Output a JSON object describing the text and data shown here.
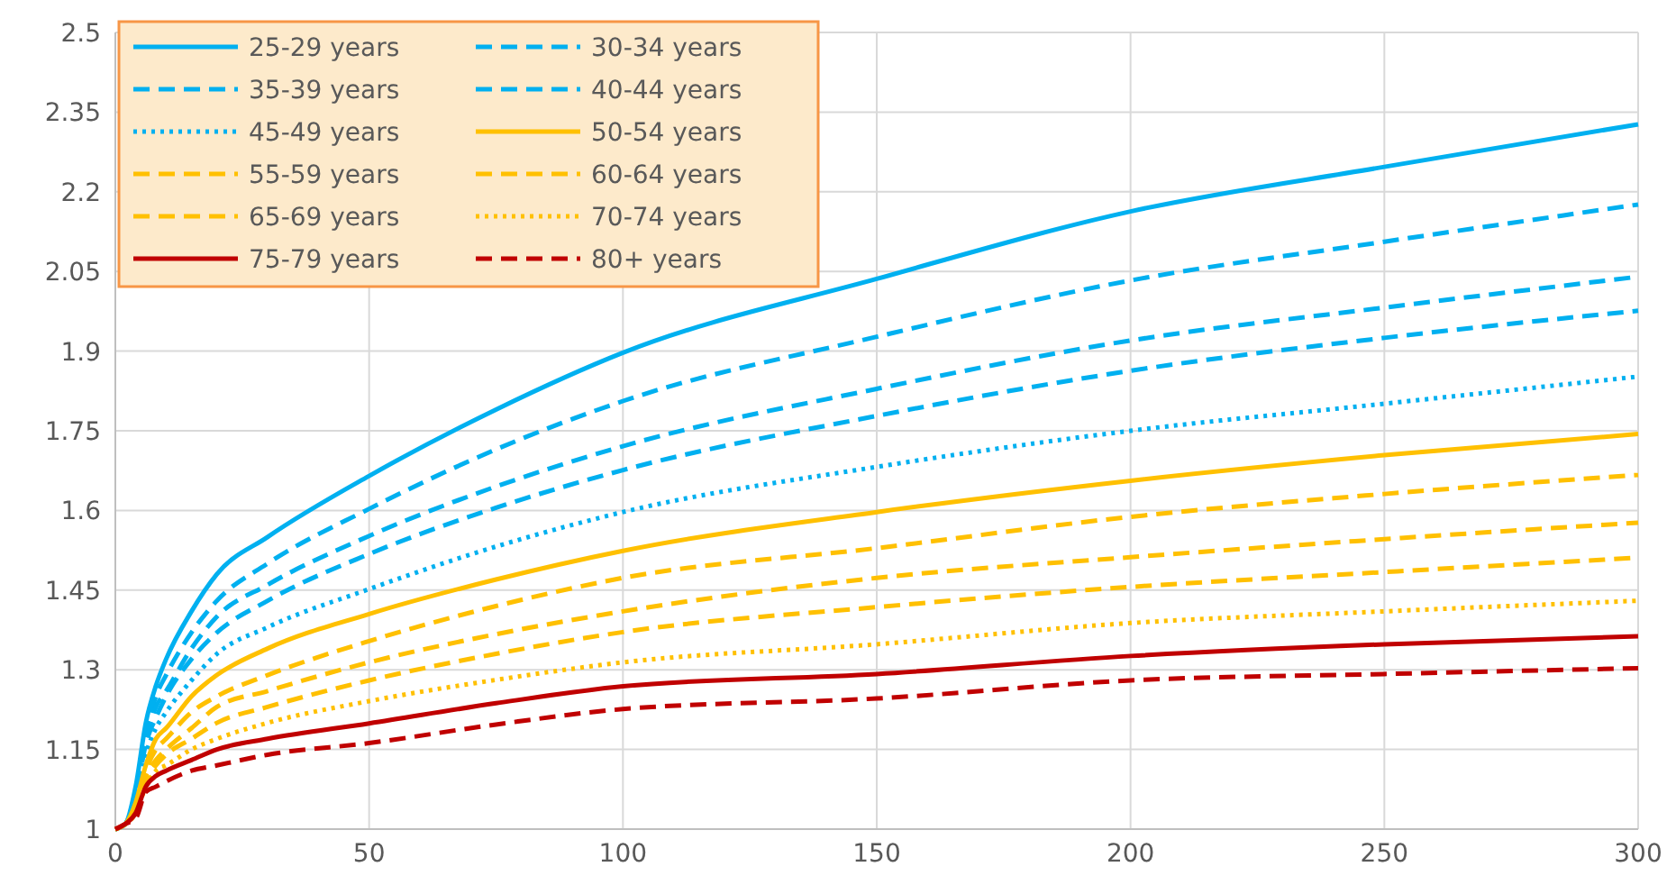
{
  "chart_data": {
    "type": "line",
    "x": [
      0,
      2,
      4,
      6,
      8,
      10,
      15,
      20,
      30,
      50,
      75,
      100,
      150,
      200,
      250,
      300
    ],
    "xlim": [
      0,
      300
    ],
    "xticks": [
      0,
      50,
      100,
      150,
      200,
      250,
      300
    ],
    "ylim": [
      1,
      2.5
    ],
    "yticks": [
      1,
      1.15,
      1.3,
      1.45,
      1.6,
      1.75,
      1.9,
      2.05,
      2.2,
      2.35,
      2.5
    ],
    "grid": true,
    "legend": "top left",
    "series": [
      {
        "name": "25-29 years",
        "color": "#00b0f0",
        "line_style": "solid",
        "values": [
          1,
          1.01,
          1.08,
          1.2,
          1.27,
          1.32,
          1.41,
          1.48,
          1.55,
          1.665,
          1.79,
          1.897,
          2.036,
          2.163,
          2.247,
          2.327
        ]
      },
      {
        "name": "30-34 years",
        "color": "#00b0f0",
        "line_style": "dashed",
        "values": [
          1,
          1.01,
          1.07,
          1.18,
          1.25,
          1.29,
          1.37,
          1.43,
          1.5,
          1.603,
          1.715,
          1.806,
          1.927,
          2.033,
          2.106,
          2.176
        ]
      },
      {
        "name": "35-39 years",
        "color": "#00b0f0",
        "line_style": "dashed",
        "values": [
          1,
          1.01,
          1.07,
          1.17,
          1.23,
          1.26,
          1.34,
          1.4,
          1.46,
          1.552,
          1.645,
          1.721,
          1.829,
          1.92,
          1.982,
          2.04
        ]
      },
      {
        "name": "40-44 years",
        "color": "#00b0f0",
        "line_style": "dashed",
        "values": [
          1,
          1.01,
          1.06,
          1.16,
          1.21,
          1.25,
          1.32,
          1.37,
          1.43,
          1.518,
          1.605,
          1.676,
          1.778,
          1.863,
          1.925,
          1.976
        ]
      },
      {
        "name": "45-49 years",
        "color": "#00b0f0",
        "line_style": "dotted",
        "values": [
          1,
          1.01,
          1.05,
          1.14,
          1.19,
          1.22,
          1.28,
          1.33,
          1.38,
          1.452,
          1.532,
          1.597,
          1.682,
          1.75,
          1.801,
          1.852
        ]
      },
      {
        "name": "50-54 years",
        "color": "#ffc000",
        "line_style": "solid",
        "values": [
          1,
          1.01,
          1.05,
          1.12,
          1.17,
          1.19,
          1.25,
          1.29,
          1.34,
          1.405,
          1.47,
          1.524,
          1.597,
          1.656,
          1.704,
          1.744
        ]
      },
      {
        "name": "55-59 years",
        "color": "#ffc000",
        "line_style": "dashed",
        "values": [
          1,
          1.01,
          1.04,
          1.11,
          1.15,
          1.17,
          1.22,
          1.25,
          1.29,
          1.354,
          1.42,
          1.473,
          1.529,
          1.588,
          1.631,
          1.667
        ]
      },
      {
        "name": "60-64 years",
        "color": "#ffc000",
        "line_style": "dashed",
        "values": [
          1,
          1.01,
          1.04,
          1.1,
          1.13,
          1.15,
          1.19,
          1.23,
          1.26,
          1.314,
          1.367,
          1.41,
          1.473,
          1.512,
          1.546,
          1.577
        ]
      },
      {
        "name": "65-69 years",
        "color": "#ffc000",
        "line_style": "dashed",
        "values": [
          1,
          1.01,
          1.03,
          1.09,
          1.12,
          1.14,
          1.17,
          1.2,
          1.23,
          1.28,
          1.33,
          1.371,
          1.418,
          1.456,
          1.484,
          1.511
        ]
      },
      {
        "name": "70-74 years",
        "color": "#ffc000",
        "line_style": "dotted",
        "values": [
          1,
          1.01,
          1.03,
          1.08,
          1.11,
          1.12,
          1.15,
          1.17,
          1.2,
          1.241,
          1.281,
          1.314,
          1.348,
          1.388,
          1.41,
          1.43
        ]
      },
      {
        "name": "75-79 years",
        "color": "#c00000",
        "line_style": "solid",
        "values": [
          1,
          1.01,
          1.03,
          1.08,
          1.1,
          1.11,
          1.13,
          1.15,
          1.17,
          1.199,
          1.237,
          1.269,
          1.292,
          1.326,
          1.348,
          1.363
        ]
      },
      {
        "name": "80+ years",
        "color": "#c00000",
        "line_style": "dashed",
        "values": [
          1,
          1.01,
          1.02,
          1.07,
          1.08,
          1.09,
          1.11,
          1.12,
          1.14,
          1.162,
          1.197,
          1.226,
          1.246,
          1.28,
          1.292,
          1.303
        ]
      }
    ]
  }
}
